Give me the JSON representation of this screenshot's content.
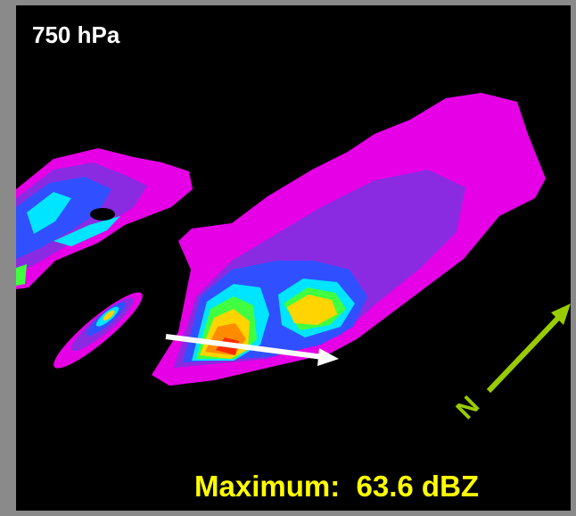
{
  "panel": {
    "level": "750 hPa",
    "maximum": "Maximum:  63.6 dBZ",
    "north": "N"
  }
}
